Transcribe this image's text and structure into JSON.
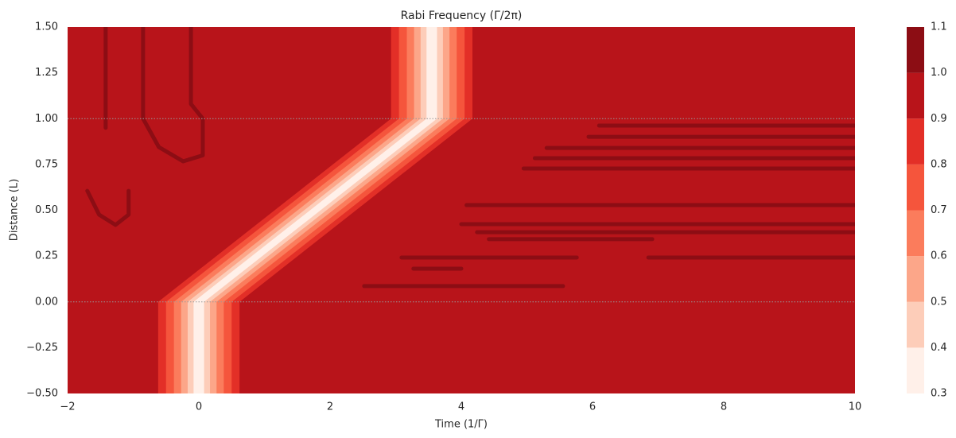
{
  "chart_data": {
    "type": "contour",
    "title": "Rabi Frequency (Γ/2π)",
    "xlabel": "Time (1/Γ)",
    "ylabel": "Distance (L)",
    "xlim": [
      -2,
      10
    ],
    "ylim": [
      -0.5,
      1.5
    ],
    "xticks": [
      {
        "value": -2,
        "label": "−2"
      },
      0,
      2,
      4,
      6,
      8,
      10
    ],
    "yticks": [
      {
        "value": -0.5,
        "label": "−0.50"
      },
      {
        "value": -0.25,
        "label": "−0.25"
      },
      {
        "value": 0,
        "label": "0.00"
      },
      {
        "value": 0.25,
        "label": "0.25"
      },
      {
        "value": 0.5,
        "label": "0.50"
      },
      {
        "value": 0.75,
        "label": "0.75"
      },
      {
        "value": 1,
        "label": "1.00"
      },
      {
        "value": 1.25,
        "label": "1.25"
      },
      {
        "value": 1.5,
        "label": "1.50"
      }
    ],
    "levels": [
      0.3,
      0.4,
      0.5,
      0.6,
      0.7,
      0.8,
      0.9,
      {
        "value": 1,
        "label": "1.0"
      },
      1.1
    ],
    "colors": [
      "#fff0e9",
      "#fdcdb9",
      "#fca689",
      "#fb7c5c",
      "#f5553c",
      "#e32f27",
      "#b8141a",
      "#8c0d14"
    ],
    "hlines": [
      0,
      1
    ],
    "pulse": {
      "x": [
        0,
        0,
        3.55,
        3.55
      ],
      "y": [
        -0.5,
        0,
        1,
        1.5
      ],
      "contour_levels": [
        0.9,
        0.8,
        0.7,
        0.6,
        0.5,
        0.4
      ],
      "half_widths": [
        0.62,
        0.5,
        0.38,
        0.27,
        0.17,
        0.08
      ]
    },
    "high_regions": [
      {
        "x": [
          -1.42,
          -1.42
        ],
        "y": [
          1.5,
          0.95
        ]
      },
      {
        "x": [
          -0.85,
          -0.85,
          -0.61,
          -0.24,
          0.06,
          0.06,
          -0.12,
          -0.12
        ],
        "y": [
          1.5,
          1.0,
          0.845,
          0.767,
          0.8,
          1.0,
          1.08,
          1.5
        ]
      },
      {
        "x": [
          -1.7,
          -1.52,
          -1.27,
          -1.07,
          -1.07
        ],
        "y": [
          0.606,
          0.476,
          0.42,
          0.476,
          0.606
        ]
      },
      {
        "x": [
          6.1,
          10
        ],
        "y": [
          0.962,
          0.962
        ]
      },
      {
        "x": [
          5.94,
          10
        ],
        "y": [
          0.901,
          0.901
        ]
      },
      {
        "x": [
          5.3,
          10
        ],
        "y": [
          0.84,
          0.84
        ]
      },
      {
        "x": [
          5.12,
          10
        ],
        "y": [
          0.784,
          0.784
        ]
      },
      {
        "x": [
          4.95,
          10
        ],
        "y": [
          0.728,
          0.728
        ]
      },
      {
        "x": [
          4.08,
          10
        ],
        "y": [
          0.528,
          0.528
        ]
      },
      {
        "x": [
          4.0,
          10
        ],
        "y": [
          0.424,
          0.424
        ]
      },
      {
        "x": [
          4.24,
          10
        ],
        "y": [
          0.38,
          0.38
        ]
      },
      {
        "x": [
          4.42,
          6.91
        ],
        "y": [
          0.342,
          0.342
        ]
      },
      {
        "x": [
          3.09,
          5.76
        ],
        "y": [
          0.242,
          0.242
        ]
      },
      {
        "x": [
          6.85,
          10
        ],
        "y": [
          0.242,
          0.242
        ]
      },
      {
        "x": [
          3.27,
          4.0
        ],
        "y": [
          0.181,
          0.181
        ]
      },
      {
        "x": [
          2.52,
          5.55
        ],
        "y": [
          0.086,
          0.086
        ]
      }
    ]
  }
}
